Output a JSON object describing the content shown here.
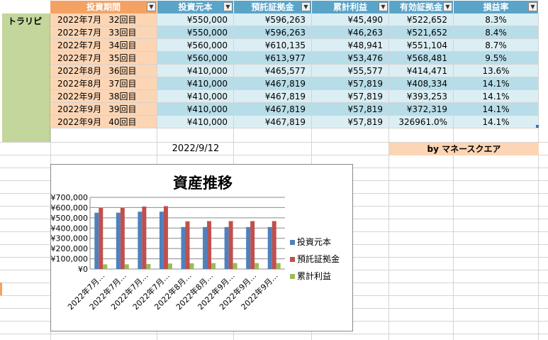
{
  "sheet": {
    "side_label": "トラリピ",
    "date": "2022/9/12",
    "credit": "by マネースクエア"
  },
  "table": {
    "headers": [
      "投資期間",
      "投資元本",
      "預託証拠金",
      "累計利益",
      "有効証拠金",
      "損益率"
    ],
    "rows": [
      [
        "2022年7月",
        "32回目",
        "¥550,000",
        "¥596,263",
        "¥45,490",
        "¥522,652",
        "8.3%"
      ],
      [
        "2022年7月",
        "33回目",
        "¥550,000",
        "¥596,263",
        "¥46,263",
        "¥521,652",
        "8.4%"
      ],
      [
        "2022年7月",
        "34回目",
        "¥560,000",
        "¥610,135",
        "¥48,941",
        "¥551,104",
        "8.7%"
      ],
      [
        "2022年7月",
        "35回目",
        "¥560,000",
        "¥613,977",
        "¥53,476",
        "¥568,481",
        "9.5%"
      ],
      [
        "2022年8月",
        "36回目",
        "¥410,000",
        "¥465,577",
        "¥55,577",
        "¥414,471",
        "13.6%"
      ],
      [
        "2022年8月",
        "37回目",
        "¥410,000",
        "¥467,819",
        "¥57,819",
        "¥408,334",
        "14.1%"
      ],
      [
        "2022年9月",
        "38回目",
        "¥410,000",
        "¥467,819",
        "¥57,819",
        "¥393,253",
        "14.1%"
      ],
      [
        "2022年9月",
        "39回目",
        "¥410,000",
        "¥467,819",
        "¥57,819",
        "¥372,319",
        "14.1%"
      ],
      [
        "2022年9月",
        "40回目",
        "¥410,000",
        "¥467,819",
        "¥57,819",
        "326961.0%",
        "14.1%"
      ]
    ],
    "colors": {
      "header": "#5aa4c8",
      "period_header": "#f4a263",
      "period_fill": "#fcd5b4",
      "row_a": "#dbeef3",
      "row_b": "#b7dde8",
      "side": "#c3d69b",
      "credit_fill": "#fcd5b4"
    }
  },
  "chart_data": {
    "type": "bar",
    "title": "資産推移",
    "categories": [
      "2022年7月…",
      "2022年7月…",
      "2022年7月…",
      "2022年7月…",
      "2022年8月…",
      "2022年8月…",
      "2022年9月…",
      "2022年9月…",
      "2022年9月…"
    ],
    "series": [
      {
        "name": "投資元本",
        "color": "#4f81bd",
        "values": [
          550000,
          550000,
          560000,
          560000,
          410000,
          410000,
          410000,
          410000,
          410000
        ]
      },
      {
        "name": "預託証拠金",
        "color": "#c0504d",
        "values": [
          596263,
          596263,
          610135,
          613977,
          465577,
          467819,
          467819,
          467819,
          467819
        ]
      },
      {
        "name": "累計利益",
        "color": "#9bbb59",
        "values": [
          45490,
          46263,
          48941,
          53476,
          55577,
          57819,
          57819,
          57819,
          57819
        ]
      }
    ],
    "yticks": [
      "¥700,000",
      "¥600,000",
      "¥500,000",
      "¥400,000",
      "¥300,000",
      "¥200,000",
      "¥100,000",
      "¥0"
    ],
    "ylim": [
      0,
      700000
    ],
    "legend": "right",
    "grid": true
  }
}
